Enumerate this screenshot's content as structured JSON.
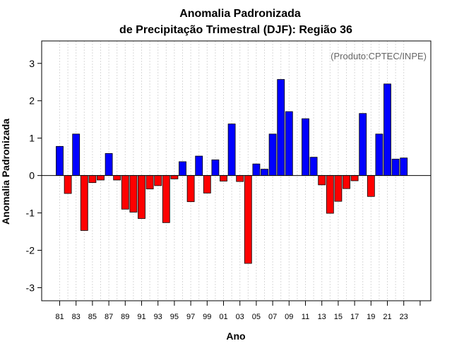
{
  "chart_data": {
    "type": "bar",
    "title": "Anomalia Padronizada",
    "subtitle": "de Precipitação Trimestral (DJF): Região 36",
    "xlabel": "Ano",
    "ylabel": "Anomalia Padronizada",
    "source_label": "(Produto:CPTEC/INPE)",
    "ylim": [
      -3.35,
      3.6
    ],
    "y_ticks": [
      -3,
      -2,
      -1,
      0,
      1,
      2,
      3
    ],
    "x_ticks": [
      "81",
      "83",
      "85",
      "87",
      "89",
      "91",
      "93",
      "95",
      "97",
      "99",
      "01",
      "03",
      "05",
      "07",
      "09",
      "11",
      "13",
      "15",
      "17",
      "19",
      "21",
      "23"
    ],
    "categories": [
      "81",
      "82",
      "83",
      "84",
      "85",
      "86",
      "87",
      "88",
      "89",
      "90",
      "91",
      "92",
      "93",
      "94",
      "95",
      "96",
      "97",
      "98",
      "99",
      "00",
      "01",
      "02",
      "03",
      "04",
      "05",
      "06",
      "07",
      "08",
      "09",
      "10",
      "11",
      "12",
      "13",
      "14",
      "15",
      "16",
      "17",
      "18",
      "19",
      "20",
      "21",
      "22",
      "23"
    ],
    "values": [
      0.78,
      -0.48,
      1.11,
      -1.47,
      -0.19,
      -0.12,
      0.59,
      -0.12,
      -0.9,
      -0.98,
      -1.15,
      -0.36,
      -0.27,
      -1.26,
      -0.09,
      0.37,
      -0.7,
      0.52,
      -0.47,
      0.42,
      -0.15,
      1.38,
      -0.16,
      -2.35,
      0.31,
      0.17,
      1.11,
      2.57,
      1.71,
      0.0,
      1.52,
      0.49,
      -0.25,
      -1.01,
      -0.69,
      -0.35,
      -0.14,
      1.66,
      -0.56,
      1.11,
      2.45,
      0.44,
      0.47
    ],
    "colors": {
      "positive": "#0000ff",
      "negative": "#ff0000"
    },
    "grid": true
  }
}
